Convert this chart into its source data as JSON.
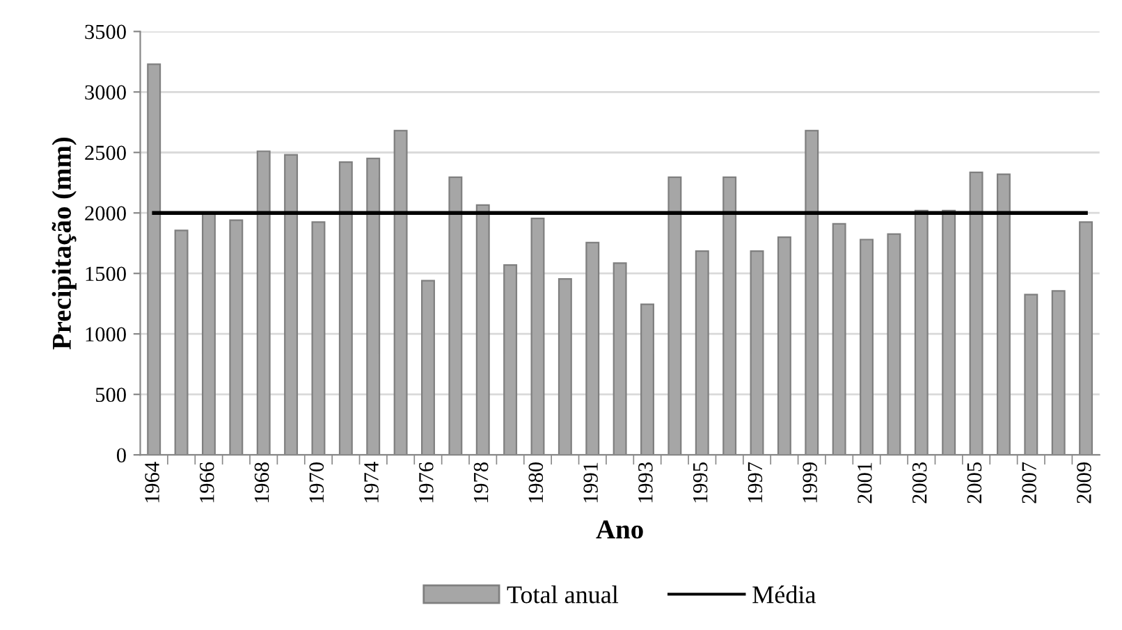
{
  "chart_data": {
    "type": "bar",
    "xlabel": "Ano",
    "ylabel": "Precipitação (mm)",
    "categories": [
      "1964",
      null,
      "1966",
      null,
      "1968",
      null,
      "1970",
      null,
      "1974",
      null,
      "1976",
      null,
      "1978",
      null,
      "1980",
      null,
      "1991",
      null,
      "1993",
      null,
      "1995",
      null,
      "1997",
      null,
      "1999",
      null,
      "2001",
      null,
      "2003",
      null,
      "2005",
      null,
      "2007",
      null,
      "2009"
    ],
    "series": [
      {
        "name": "Total anual",
        "color": "#a6a6a6",
        "values": [
          3230,
          1855,
          2000,
          1940,
          2510,
          2480,
          1925,
          2420,
          2450,
          2680,
          1440,
          2295,
          2065,
          1570,
          1955,
          1455,
          1755,
          1585,
          1245,
          2295,
          1685,
          2295,
          1685,
          1800,
          2680,
          1910,
          1780,
          1825,
          2020,
          2020,
          2335,
          2320,
          1325,
          1355,
          1925
        ]
      }
    ],
    "ref_lines": [
      {
        "axis": "y",
        "value": 2000,
        "label": "Média",
        "color": "#000000"
      }
    ],
    "ylim": [
      0,
      3500
    ],
    "yticks": [
      0,
      500,
      1000,
      1500,
      2000,
      2500,
      3000,
      3500
    ],
    "grid": "y",
    "legend": "bottom"
  }
}
